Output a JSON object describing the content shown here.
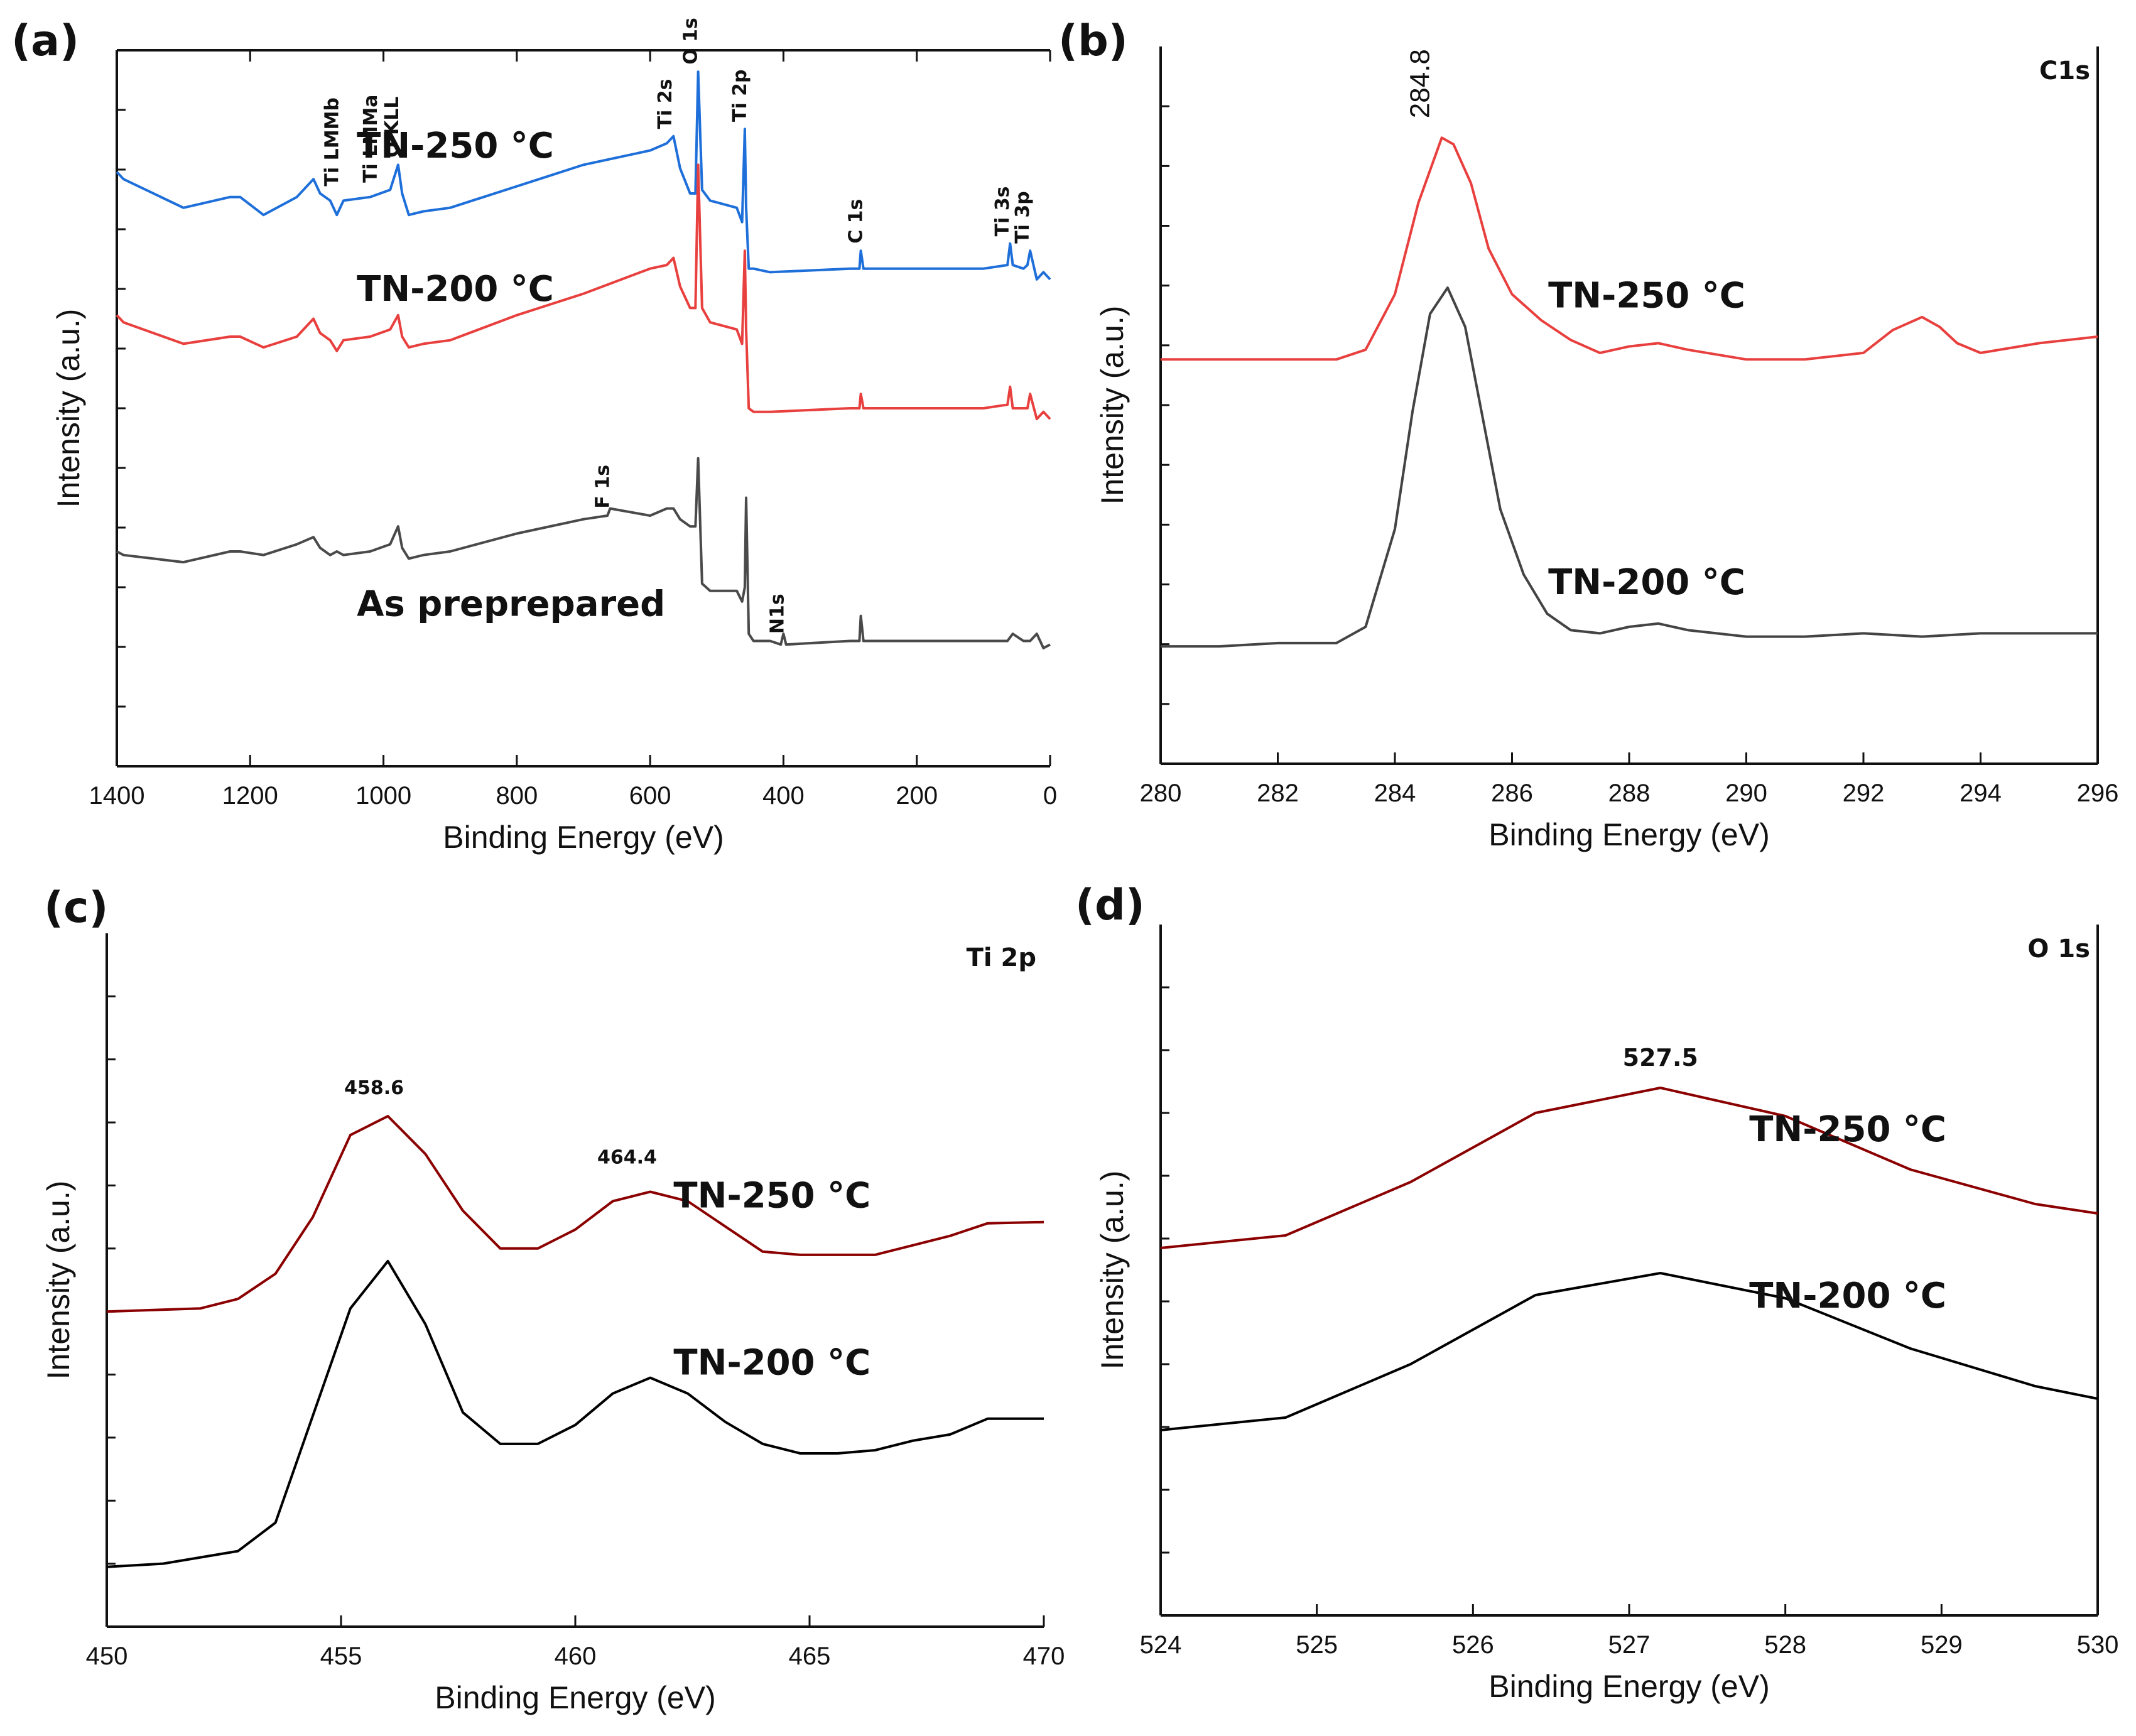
{
  "chart_data": [
    {
      "panel": "(a)",
      "type": "line",
      "title": "",
      "xlabel": "Binding Energy (eV)",
      "ylabel": "Intensity (a.u.)",
      "xlim": [
        1400,
        0
      ],
      "x_reversed": true,
      "xticks": [
        1400,
        1200,
        1000,
        800,
        600,
        400,
        200,
        0
      ],
      "ylim": [
        0,
        10
      ],
      "series": [
        {
          "name": "TN-250 °C",
          "color": "#1e6fd9",
          "x": [
            1400,
            1390,
            1300,
            1230,
            1215,
            1180,
            1130,
            1105,
            1095,
            1080,
            1070,
            1060,
            1020,
            990,
            978,
            972,
            962,
            940,
            900,
            800,
            700,
            600,
            575,
            565,
            555,
            540,
            532,
            528,
            522,
            510,
            470,
            462,
            458,
            456,
            452,
            445,
            420,
            300,
            286,
            284,
            280,
            200,
            100,
            64,
            60,
            56,
            40,
            34,
            30,
            20,
            10,
            0
          ],
          "y": [
            8.3,
            8.2,
            7.8,
            7.95,
            7.95,
            7.7,
            7.95,
            8.2,
            8.0,
            7.9,
            7.7,
            7.9,
            7.95,
            8.05,
            8.4,
            8.0,
            7.7,
            7.75,
            7.8,
            8.1,
            8.4,
            8.6,
            8.7,
            8.8,
            8.35,
            8.0,
            8.0,
            9.7,
            8.05,
            7.9,
            7.8,
            7.6,
            8.9,
            7.8,
            6.95,
            6.95,
            6.9,
            6.95,
            6.95,
            7.2,
            6.95,
            6.95,
            6.95,
            7.0,
            7.3,
            7.0,
            6.95,
            7.0,
            7.2,
            6.8,
            6.9,
            6.8
          ]
        },
        {
          "name": "TN-200 °C",
          "color": "#e8403e",
          "x": [
            1400,
            1390,
            1300,
            1230,
            1215,
            1180,
            1130,
            1105,
            1095,
            1080,
            1070,
            1060,
            1020,
            990,
            978,
            972,
            962,
            940,
            900,
            800,
            700,
            600,
            575,
            565,
            555,
            540,
            532,
            528,
            522,
            510,
            470,
            462,
            458,
            456,
            452,
            445,
            420,
            300,
            286,
            284,
            280,
            200,
            100,
            64,
            60,
            56,
            40,
            34,
            30,
            20,
            10,
            0
          ],
          "y": [
            6.3,
            6.2,
            5.9,
            6.0,
            6.0,
            5.85,
            6.0,
            6.25,
            6.05,
            5.95,
            5.8,
            5.95,
            6.0,
            6.1,
            6.3,
            6.0,
            5.85,
            5.9,
            5.95,
            6.3,
            6.6,
            6.95,
            7.0,
            7.1,
            6.7,
            6.4,
            6.4,
            8.4,
            6.4,
            6.2,
            6.1,
            5.9,
            7.2,
            6.1,
            5.0,
            4.95,
            4.95,
            5.0,
            5.0,
            5.2,
            5.0,
            5.0,
            5.0,
            5.05,
            5.3,
            5.0,
            5.0,
            5.0,
            5.2,
            4.85,
            4.95,
            4.85
          ]
        },
        {
          "name": "As preprepared",
          "color": "#4a4a4a",
          "x": [
            1400,
            1390,
            1300,
            1230,
            1215,
            1180,
            1130,
            1105,
            1095,
            1080,
            1070,
            1060,
            1020,
            990,
            978,
            972,
            962,
            940,
            900,
            800,
            700,
            664,
            660,
            600,
            575,
            565,
            555,
            540,
            532,
            528,
            522,
            510,
            470,
            462,
            458,
            456,
            452,
            445,
            420,
            404,
            400,
            396,
            300,
            286,
            284,
            280,
            200,
            100,
            64,
            60,
            56,
            40,
            34,
            30,
            20,
            10,
            0
          ],
          "y": [
            3.0,
            2.95,
            2.85,
            3.0,
            3.0,
            2.95,
            3.1,
            3.2,
            3.05,
            2.95,
            3.0,
            2.95,
            3.0,
            3.1,
            3.35,
            3.05,
            2.9,
            2.95,
            3.0,
            3.25,
            3.45,
            3.5,
            3.6,
            3.5,
            3.6,
            3.6,
            3.45,
            3.35,
            3.35,
            4.3,
            2.55,
            2.45,
            2.45,
            2.3,
            2.5,
            3.75,
            1.85,
            1.75,
            1.75,
            1.7,
            1.85,
            1.7,
            1.75,
            1.75,
            2.1,
            1.75,
            1.75,
            1.75,
            1.75,
            1.8,
            1.85,
            1.75,
            1.75,
            1.75,
            1.85,
            1.65,
            1.7
          ]
        }
      ],
      "series_labels": [
        {
          "text": "TN-250 °C",
          "x": 1040,
          "y": 8.5
        },
        {
          "text": "TN-200 °C",
          "x": 1040,
          "y": 6.5
        },
        {
          "text": "As preprepared",
          "x": 1040,
          "y": 2.1
        }
      ],
      "peak_labels": [
        {
          "text": "Ti LMMb",
          "x": 1068,
          "y": 8.1
        },
        {
          "text": "Ti LMMa",
          "x": 1010,
          "y": 8.15
        },
        {
          "text": "O KLL",
          "x": 978,
          "y": 8.5
        },
        {
          "text": "Ti 2s",
          "x": 568,
          "y": 8.9
        },
        {
          "text": "O 1s",
          "x": 530,
          "y": 9.8
        },
        {
          "text": "Ti 2p",
          "x": 456,
          "y": 9.0
        },
        {
          "text": "C 1s",
          "x": 282,
          "y": 7.3
        },
        {
          "text": "Ti 3s",
          "x": 62,
          "y": 7.4
        },
        {
          "text": "Ti 3p",
          "x": 32,
          "y": 7.3
        },
        {
          "text": "F 1s",
          "x": 662,
          "y": 3.6
        },
        {
          "text": "N1s",
          "x": 400,
          "y": 1.85
        }
      ]
    },
    {
      "panel": "(b)",
      "type": "line",
      "title": "C1s",
      "xlabel": "Binding Energy (eV)",
      "ylabel": "Intensity (a.u.)",
      "xlim": [
        280,
        296
      ],
      "xticks": [
        280,
        282,
        284,
        286,
        288,
        290,
        292,
        294,
        296
      ],
      "ylim": [
        0,
        11
      ],
      "series": [
        {
          "name": "TN-250 °C",
          "color": "#e8403e",
          "x": [
            280,
            281,
            282,
            283,
            283.5,
            284,
            284.4,
            284.8,
            285,
            285.3,
            285.6,
            286,
            286.5,
            287,
            287.5,
            288,
            288.5,
            289,
            290,
            291,
            292,
            292.5,
            293,
            293.3,
            293.6,
            294,
            295,
            296
          ],
          "y": [
            6.2,
            6.2,
            6.2,
            6.2,
            6.35,
            7.2,
            8.6,
            9.6,
            9.5,
            8.9,
            7.9,
            7.2,
            6.8,
            6.5,
            6.3,
            6.4,
            6.45,
            6.35,
            6.2,
            6.2,
            6.3,
            6.65,
            6.85,
            6.7,
            6.45,
            6.3,
            6.45,
            6.55
          ]
        },
        {
          "name": "TN-200 °C",
          "color": "#444444",
          "x": [
            280,
            281,
            282,
            283,
            283.5,
            284,
            284.3,
            284.6,
            284.9,
            285.2,
            285.5,
            285.8,
            286.2,
            286.6,
            287,
            287.5,
            288,
            288.5,
            289,
            290,
            291,
            292,
            293,
            294,
            295,
            296
          ],
          "y": [
            1.8,
            1.8,
            1.85,
            1.85,
            2.1,
            3.6,
            5.4,
            6.9,
            7.3,
            6.7,
            5.3,
            3.9,
            2.9,
            2.3,
            2.05,
            2.0,
            2.1,
            2.15,
            2.05,
            1.95,
            1.95,
            2.0,
            1.95,
            2.0,
            2.0,
            2.0
          ]
        }
      ],
      "series_labels": [
        {
          "text": "TN-250 °C",
          "x": 288.3,
          "y": 7.0
        },
        {
          "text": "TN-200 °C",
          "x": 288.3,
          "y": 2.6
        }
      ],
      "peak_labels": [
        {
          "text": "284.8",
          "x": 284.8,
          "y": 9.9
        }
      ]
    },
    {
      "panel": "(c)",
      "type": "line",
      "title": "Ti 2p",
      "xlabel": "Binding Energy (eV)",
      "ylabel": "Intensity (a.u.)",
      "xlim": [
        450,
        470
      ],
      "xticks": [
        450,
        455,
        460,
        465,
        470
      ],
      "ylim": [
        0,
        11
      ],
      "series": [
        {
          "name": "TN-250 °C",
          "color": "#8b0000",
          "x": [
            450,
            452,
            452.8,
            453.6,
            454.4,
            455.2,
            456,
            456.8,
            457.6,
            458.4,
            459.2,
            460,
            460.8,
            461.6,
            462.4,
            463.2,
            464,
            464.8,
            465.6,
            466.4,
            467.2,
            468,
            468.8,
            470
          ],
          "y": [
            5.0,
            5.05,
            5.2,
            5.6,
            6.5,
            7.8,
            8.1,
            7.5,
            6.6,
            6.0,
            6.0,
            6.3,
            6.75,
            6.9,
            6.75,
            6.35,
            5.95,
            5.9,
            5.9,
            5.9,
            6.05,
            6.2,
            6.4,
            6.42
          ]
        },
        {
          "name": "TN-200 °C",
          "color": "#000000",
          "x": [
            450,
            451.2,
            452,
            452.8,
            453.6,
            454.4,
            455.2,
            456,
            456.8,
            457.6,
            458.4,
            459.2,
            460,
            460.8,
            461.6,
            462.4,
            463.2,
            464,
            464.8,
            465.6,
            466.4,
            467.2,
            468,
            468.8,
            470
          ],
          "y": [
            0.95,
            1.0,
            1.1,
            1.2,
            1.65,
            3.35,
            5.05,
            5.8,
            4.8,
            3.4,
            2.9,
            2.9,
            3.2,
            3.7,
            3.95,
            3.7,
            3.25,
            2.9,
            2.75,
            2.75,
            2.8,
            2.95,
            3.05,
            3.3,
            3.3
          ]
        }
      ],
      "series_labels": [
        {
          "text": "TN-250 °C",
          "x": 464.2,
          "y": 6.65
        },
        {
          "text": "TN-200 °C",
          "x": 464.2,
          "y": 4.0
        }
      ],
      "peak_labels": [
        {
          "text": "458.6",
          "x": 456,
          "y": 8.45
        },
        {
          "text": "464.4",
          "x": 461.4,
          "y": 7.35
        }
      ]
    },
    {
      "panel": "(d)",
      "type": "line",
      "title": "O 1s",
      "xlabel": "Binding Energy (eV)",
      "ylabel": "Intensity (a.u.)",
      "xlim": [
        524,
        530
      ],
      "xticks": [
        524,
        525,
        526,
        527,
        528,
        529,
        530
      ],
      "ylim": [
        0,
        11
      ],
      "series": [
        {
          "name": "TN-250 °C",
          "color": "#8b0000",
          "x": [
            524,
            524.8,
            525.6,
            526.4,
            527.2,
            528,
            528.8,
            529.6,
            530
          ],
          "y": [
            5.85,
            6.05,
            6.9,
            8.0,
            8.4,
            7.95,
            7.1,
            6.55,
            6.4
          ]
        },
        {
          "name": "TN-200 °C",
          "color": "#000000",
          "x": [
            524,
            524.8,
            525.6,
            526.4,
            527.2,
            528,
            528.8,
            529.6,
            530
          ],
          "y": [
            2.95,
            3.15,
            4.0,
            5.1,
            5.45,
            5.05,
            4.25,
            3.65,
            3.45
          ]
        }
      ],
      "series_labels": [
        {
          "text": "TN-250 °C",
          "x": 528.4,
          "y": 7.55
        },
        {
          "text": "TN-200 °C",
          "x": 528.4,
          "y": 4.9
        }
      ],
      "peak_labels": [
        {
          "text": "527.5",
          "x": 527.2,
          "y": 8.75
        }
      ]
    }
  ]
}
